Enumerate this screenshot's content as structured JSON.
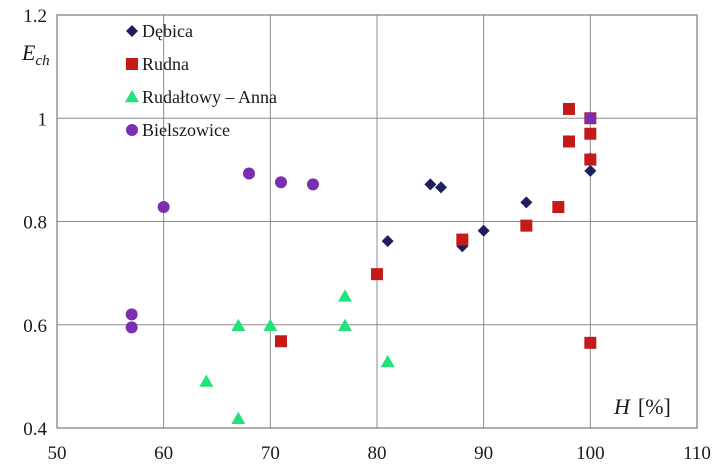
{
  "chart_data": {
    "type": "scatter",
    "x_axis": {
      "min": 50,
      "max": 110,
      "ticks": [
        50,
        60,
        70,
        80,
        90,
        100,
        110
      ],
      "tick_labels": [
        "50",
        "60",
        "70",
        "80",
        "90",
        "100",
        "110"
      ]
    },
    "y_axis": {
      "min": 0.4,
      "max": 1.2,
      "ticks": [
        0.4,
        0.6,
        0.8,
        1.0,
        1.2
      ],
      "tick_labels": [
        "0.4",
        "0.6",
        "0.8",
        "1",
        "1.2"
      ]
    },
    "xlabel_main": "H",
    "xlabel_unit": "[%]",
    "ylabel_main": "E",
    "ylabel_sub": "ch",
    "grid": true,
    "legend_placement": "top-left",
    "series": [
      {
        "name": "Dębica",
        "marker": "diamond",
        "color": "#1f1f5e",
        "points": [
          [
            81,
            0.762
          ],
          [
            85,
            0.872
          ],
          [
            86,
            0.866
          ],
          [
            88,
            0.752
          ],
          [
            90,
            0.782
          ],
          [
            94,
            0.837
          ],
          [
            100,
            0.922
          ],
          [
            100,
            0.898
          ]
        ]
      },
      {
        "name": "Rudna",
        "marker": "square",
        "color": "#c41a1a",
        "points": [
          [
            71,
            0.568
          ],
          [
            80,
            0.698
          ],
          [
            88,
            0.765
          ],
          [
            94,
            0.792
          ],
          [
            97,
            0.828
          ],
          [
            98,
            1.018
          ],
          [
            98,
            0.955
          ],
          [
            100,
            1.0
          ],
          [
            100,
            0.97
          ],
          [
            100,
            0.92
          ],
          [
            100,
            0.565
          ]
        ]
      },
      {
        "name": "Rudałtowy – Anna",
        "marker": "triangle",
        "color": "#22e27a",
        "points": [
          [
            64,
            0.49
          ],
          [
            67,
            0.598
          ],
          [
            67,
            0.418
          ],
          [
            70,
            0.598
          ],
          [
            77,
            0.655
          ],
          [
            77,
            0.598
          ],
          [
            81,
            0.528
          ]
        ]
      },
      {
        "name": "Bielszowice",
        "marker": "circle",
        "color": "#7b2fb0",
        "points": [
          [
            57,
            0.62
          ],
          [
            57,
            0.595
          ],
          [
            60,
            0.828
          ],
          [
            68,
            0.893
          ],
          [
            71,
            0.876
          ],
          [
            74,
            0.872
          ],
          [
            100,
            1.0
          ]
        ]
      }
    ]
  }
}
